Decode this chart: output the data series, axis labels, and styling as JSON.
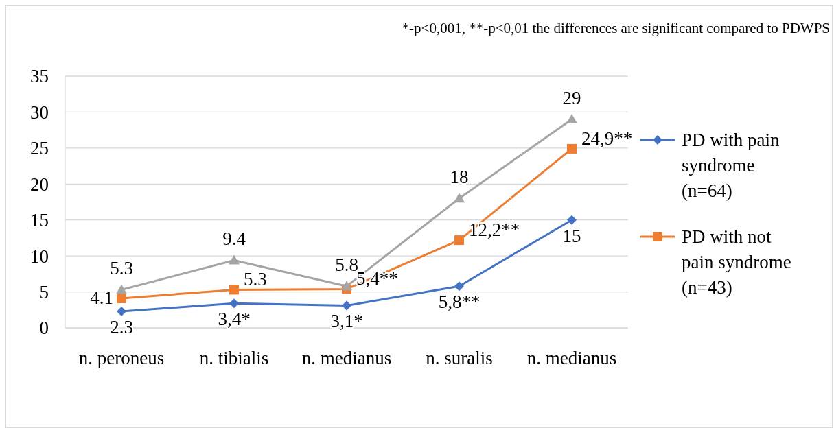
{
  "chart_data": {
    "type": "line",
    "categories": [
      "n. peroneus",
      "n. tibialis",
      "n. medianus",
      "n. suralis",
      "n. medianus"
    ],
    "ylim": [
      0,
      35
    ],
    "yticks": [
      0,
      5,
      10,
      15,
      20,
      25,
      30,
      35
    ],
    "grid": "y",
    "legend": "right",
    "line_style": "solid",
    "annotations": [
      "*-p<0,001, **-p<0,01 the differences are significant compared to PDWPS"
    ],
    "series": [
      {
        "name": "PD with pain syndrome (n=64)",
        "color": "#4472c4",
        "marker": "diamond",
        "values": [
          2.3,
          3.4,
          3.1,
          5.8,
          15
        ],
        "value_labels": [
          "2.3",
          "3,4*",
          "3,1*",
          "5,8**",
          "15"
        ]
      },
      {
        "name": "PD with not pain syndrome (n=43)",
        "color": "#ed7d31",
        "marker": "square",
        "values": [
          4.1,
          5.3,
          5.4,
          12.2,
          24.9
        ],
        "value_labels": [
          "4.1",
          "5.3",
          "5,4**",
          "12,2**",
          "24,9**"
        ]
      },
      {
        "color": "#a5a5a5",
        "marker": "triangle",
        "values": [
          5.3,
          9.4,
          5.8,
          18,
          29
        ],
        "value_labels": [
          "5.3",
          "9.4",
          "5.8",
          "18",
          "29"
        ]
      }
    ]
  }
}
